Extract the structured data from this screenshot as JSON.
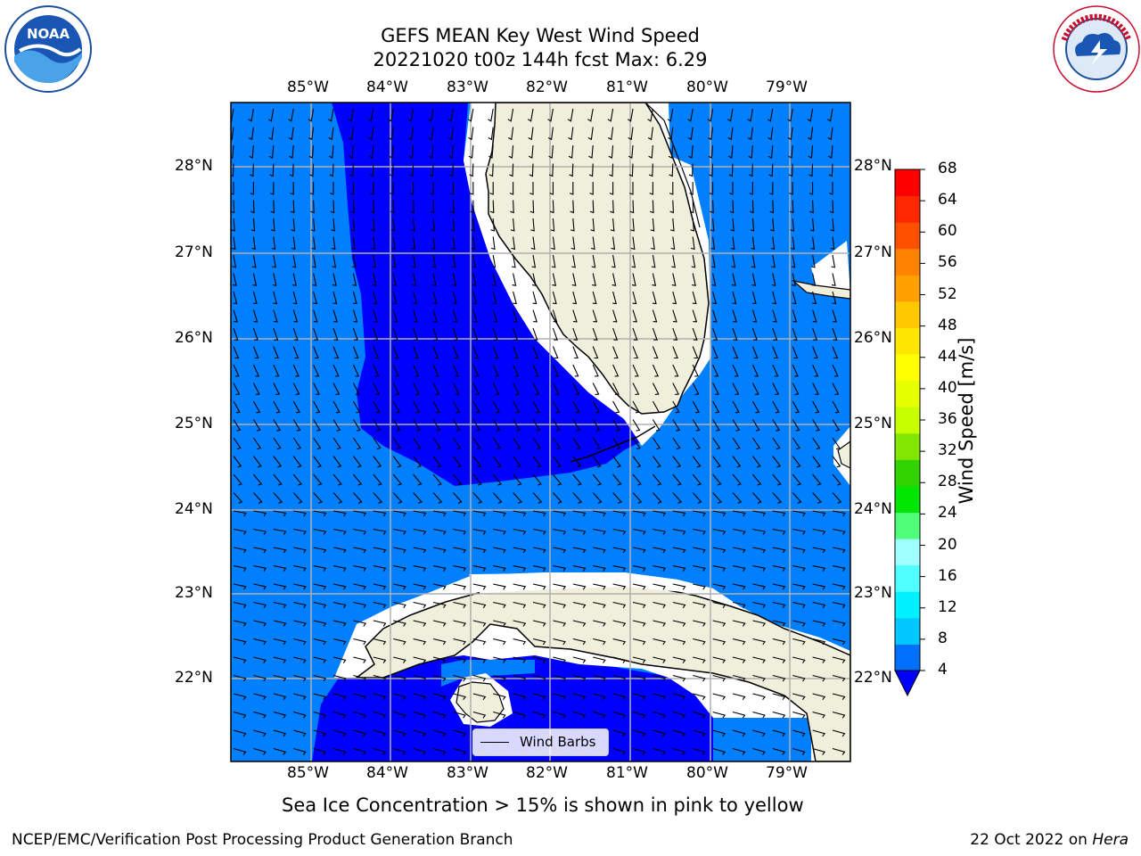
{
  "title": {
    "line1": "GEFS MEAN Key West Wind Speed",
    "line2": "20221020 t00z 144h fcst   Max: 6.29"
  },
  "logos": {
    "left": {
      "icon": "noaa-logo",
      "text": "NOAA",
      "ring_text": "NATIONAL OCEANIC AND ATMOSPHERIC ADMINISTRATION · U.S. DEPARTMENT OF COMMERCE"
    },
    "right": {
      "icon": "nws-logo",
      "ring_text": "NATIONAL WEATHER SERVICE"
    }
  },
  "map": {
    "lon_labels": [
      "85°W",
      "84°W",
      "83°W",
      "82°W",
      "81°W",
      "80°W",
      "79°W"
    ],
    "lat_labels": [
      "28°N",
      "27°N",
      "26°N",
      "25°N",
      "24°N",
      "23°N",
      "22°N"
    ],
    "legend": {
      "label": "Wind Barbs"
    }
  },
  "colorbar": {
    "title": "Wind Speed [m/s]",
    "ticks": [
      "68",
      "64",
      "60",
      "56",
      "52",
      "48",
      "44",
      "40",
      "36",
      "32",
      "28",
      "24",
      "20",
      "16",
      "12",
      "8",
      "4"
    ],
    "colors_bottom_to_top": [
      "#0070ff",
      "#00c8ff",
      "#00f0ff",
      "#50ffff",
      "#a0ffff",
      "#50ff78",
      "#00e600",
      "#32d200",
      "#82e600",
      "#c8ff00",
      "#e6ff00",
      "#ffff00",
      "#ffe600",
      "#ffc800",
      "#ffa000",
      "#ff8200",
      "#ff5000",
      "#ff2800",
      "#ff0000"
    ],
    "extend_color": "#0000ff"
  },
  "colors": {
    "ocean_low": "#0080ff",
    "ocean_lower": "#0000ff",
    "land": "#efefdc",
    "grid": "#b0b0b0"
  },
  "notes": {
    "sea_ice": "Sea Ice Concentration > 15% is shown in pink to yellow"
  },
  "footer": {
    "left": "NCEP/EMC/Verification Post Processing Product Generation Branch",
    "date": "22 Oct 2022 on",
    "machine": "Hera"
  }
}
